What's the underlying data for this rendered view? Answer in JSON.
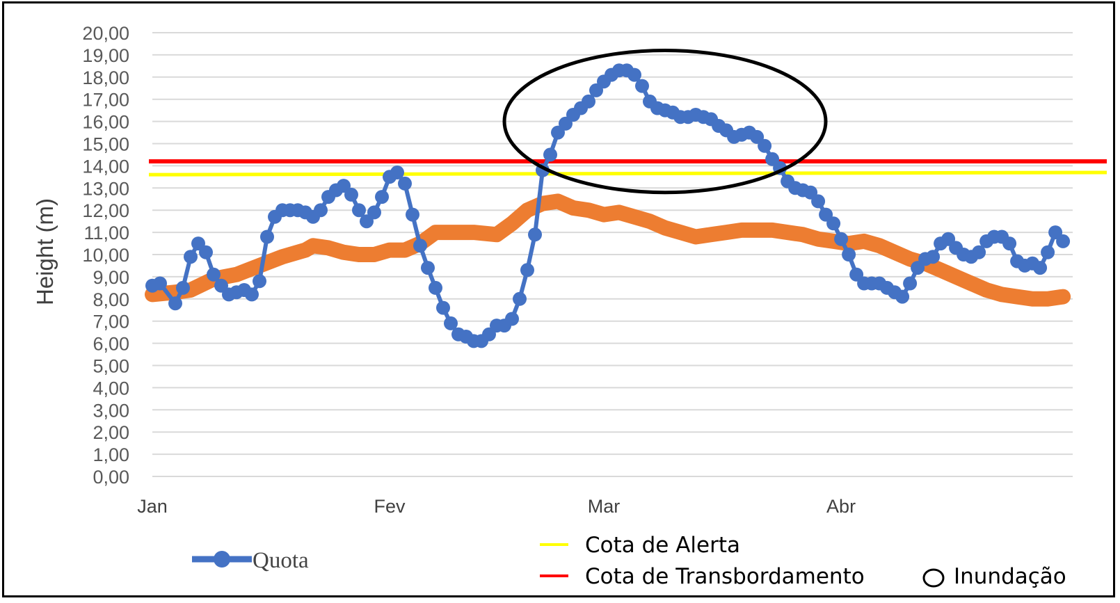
{
  "chart_data": {
    "type": "line",
    "xlabel": "",
    "ylabel": "Height (m)",
    "ylim": [
      0,
      20
    ],
    "y_ticks": [
      "0,00",
      "1,00",
      "2,00",
      "3,00",
      "4,00",
      "5,00",
      "6,00",
      "7,00",
      "8,00",
      "9,00",
      "10,00",
      "11,00",
      "12,00",
      "13,00",
      "14,00",
      "15,00",
      "16,00",
      "17,00",
      "18,00",
      "19,00",
      "20,00"
    ],
    "x_ticks": [
      "Jan",
      "Fev",
      "Mar",
      "Abr"
    ],
    "x_tick_days": [
      0,
      31,
      59,
      90
    ],
    "xlim": [
      0,
      120
    ],
    "grid": true,
    "legend_placement": "bottom",
    "series": [
      {
        "name": "Quota",
        "color": "#4472c4",
        "marker": "circle",
        "x": [
          0,
          1,
          3,
          4,
          5,
          6,
          7,
          8,
          9,
          10,
          11,
          12,
          13,
          14,
          15,
          16,
          17,
          18,
          19,
          20,
          21,
          22,
          23,
          24,
          25,
          26,
          27,
          28,
          29,
          30,
          31,
          32,
          33,
          34,
          35,
          36,
          37,
          38,
          39,
          40,
          41,
          42,
          43,
          44,
          45,
          46,
          47,
          48,
          49,
          50,
          51,
          52,
          53,
          54,
          55,
          56,
          57,
          58,
          59,
          60,
          61,
          62,
          63,
          64,
          65,
          66,
          67,
          68,
          69,
          70,
          71,
          72,
          73,
          74,
          75,
          76,
          77,
          78,
          79,
          80,
          81,
          82,
          83,
          84,
          85,
          86,
          87,
          88,
          89,
          90,
          91,
          92,
          93,
          94,
          95,
          96,
          97,
          98,
          99,
          100,
          101,
          102,
          103,
          104,
          105,
          106,
          107,
          108,
          109,
          110,
          111,
          112,
          113,
          114,
          115,
          116,
          117,
          118,
          119
        ],
        "values": [
          8.6,
          8.7,
          7.8,
          8.5,
          9.9,
          10.5,
          10.1,
          9.1,
          8.6,
          8.2,
          8.3,
          8.4,
          8.2,
          8.8,
          10.8,
          11.7,
          12.0,
          12.0,
          12.0,
          11.9,
          11.7,
          12.0,
          12.6,
          12.9,
          13.1,
          12.7,
          12.0,
          11.5,
          11.9,
          12.6,
          13.5,
          13.7,
          13.2,
          11.8,
          10.4,
          9.4,
          8.5,
          7.6,
          6.9,
          6.4,
          6.3,
          6.1,
          6.1,
          6.4,
          6.8,
          6.8,
          7.1,
          8.0,
          9.3,
          10.9,
          13.8,
          14.5,
          15.5,
          15.9,
          16.3,
          16.6,
          16.9,
          17.4,
          17.8,
          18.1,
          18.3,
          18.3,
          18.1,
          17.6,
          16.9,
          16.6,
          16.5,
          16.4,
          16.2,
          16.2,
          16.3,
          16.2,
          16.1,
          15.8,
          15.6,
          15.3,
          15.4,
          15.5,
          15.3,
          14.9,
          14.3,
          13.9,
          13.3,
          13.0,
          12.9,
          12.8,
          12.4,
          11.8,
          11.4,
          10.7,
          10.0,
          9.1,
          8.7,
          8.7,
          8.7,
          8.5,
          8.3,
          8.1,
          8.7,
          9.4,
          9.8,
          9.9,
          10.5,
          10.7,
          10.3,
          10.0,
          9.9,
          10.1,
          10.6,
          10.8,
          10.8,
          10.5,
          9.7,
          9.5,
          9.6,
          9.4,
          10.1,
          11.0,
          10.6
        ]
      },
      {
        "name": "",
        "color": "#ed7d31",
        "x": [
          0,
          3,
          5,
          8,
          11,
          14,
          17,
          20,
          21,
          23,
          25,
          27,
          29,
          31,
          33,
          35,
          37,
          39,
          42,
          45,
          47,
          49,
          51,
          53,
          55,
          57,
          59,
          61,
          63,
          65,
          67,
          69,
          71,
          73,
          75,
          77,
          79,
          81,
          83,
          85,
          87,
          89,
          91,
          93,
          95,
          97,
          99,
          101,
          103,
          105,
          107,
          109,
          111,
          113,
          115,
          117,
          119
        ],
        "values": [
          8.2,
          8.3,
          8.4,
          8.9,
          9.1,
          9.5,
          9.9,
          10.2,
          10.4,
          10.3,
          10.1,
          10.0,
          10.0,
          10.2,
          10.2,
          10.5,
          11.0,
          11.0,
          11.0,
          10.9,
          11.4,
          12.0,
          12.3,
          12.4,
          12.1,
          12.0,
          11.8,
          11.9,
          11.7,
          11.5,
          11.2,
          11.0,
          10.8,
          10.9,
          11.0,
          11.1,
          11.1,
          11.1,
          11.0,
          10.9,
          10.7,
          10.6,
          10.5,
          10.6,
          10.4,
          10.1,
          9.8,
          9.6,
          9.3,
          9.0,
          8.7,
          8.4,
          8.2,
          8.1,
          8.0,
          8.0,
          8.1
        ]
      },
      {
        "name": "Cota de Alerta",
        "color": "#ffff00",
        "x": [
          -1,
          123
        ],
        "values": [
          13.6,
          13.7
        ]
      },
      {
        "name": "Cota de Transbordamento",
        "color": "#ff0000",
        "x": [
          -1,
          123
        ],
        "values": [
          14.2,
          14.2
        ]
      }
    ],
    "annotation": {
      "label": "Inundação",
      "shape": "ellipse",
      "x_range": [
        46,
        88
      ],
      "y_range": [
        12.8,
        19.2
      ],
      "color": "#000000"
    }
  }
}
